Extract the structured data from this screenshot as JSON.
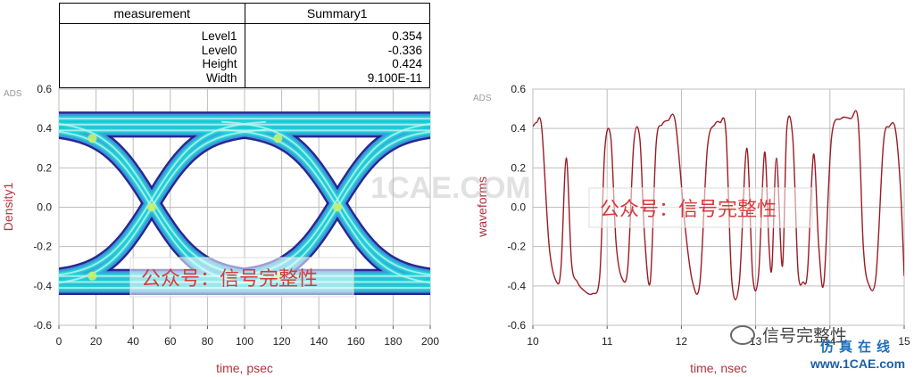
{
  "summary_table": {
    "headers": [
      "measurement",
      "Summary1"
    ],
    "rows": [
      {
        "name": "Level1",
        "value": "0.354"
      },
      {
        "name": "Level0",
        "value": "-0.336"
      },
      {
        "name": "Height",
        "value": "0.424"
      },
      {
        "name": "Width",
        "value": "9.100E-11"
      }
    ]
  },
  "watermarks": {
    "wechat_label": "公众号：信号完整性",
    "ghost_text": "1CAE.COM",
    "wechat_footer": "信号完整性",
    "site_cn": "仿真在线",
    "site_url": "www.1CAE.com"
  },
  "chart_data": [
    {
      "type": "eye-diagram",
      "corner_label": "ADS",
      "title": "",
      "xlabel": "time, psec",
      "ylabel": "Density1",
      "xlim": [
        0,
        200
      ],
      "ylim": [
        -0.6,
        0.6
      ],
      "xticks": [
        0,
        20,
        40,
        60,
        80,
        100,
        120,
        140,
        160,
        180,
        200
      ],
      "yticks": [
        -0.6,
        -0.4,
        -0.2,
        0.0,
        0.2,
        0.4,
        0.6
      ],
      "ytick_labels": [
        "-0.6",
        "-0.4",
        "-0.2",
        "0.0",
        "0.2",
        "0.4",
        "0.6"
      ],
      "level_high": 0.42,
      "level_low": -0.38,
      "crossings_x": [
        50,
        150
      ],
      "crossing_y": 0.0,
      "colors": {
        "core": "#1fd3d3",
        "mid": "#3f9fe0",
        "edge": "#1a1f8c",
        "hot": "#c6ef6e",
        "axis": "#b2333d",
        "grid": "#b8b8b8"
      }
    },
    {
      "type": "line",
      "corner_label": "ADS",
      "title": "",
      "xlabel": "time, nsec",
      "ylabel": "waveforms",
      "xlim": [
        10,
        15
      ],
      "ylim": [
        -0.6,
        0.6
      ],
      "xticks": [
        10,
        11,
        12,
        13,
        14,
        15
      ],
      "yticks": [
        -0.6,
        -0.4,
        -0.2,
        0.0,
        0.2,
        0.4,
        0.6
      ],
      "ytick_labels": [
        "-0.6",
        "-0.4",
        "-0.2",
        "0.0",
        "0.2",
        "0.4",
        "0.6"
      ],
      "series": [
        {
          "name": "waveforms",
          "color": "#9b1b25",
          "x": [
            10.0,
            10.05,
            10.12,
            10.22,
            10.32,
            10.38,
            10.45,
            10.52,
            10.6,
            10.68,
            10.8,
            10.9,
            10.97,
            11.05,
            11.12,
            11.2,
            11.28,
            11.36,
            11.44,
            11.5,
            11.58,
            11.66,
            11.74,
            11.82,
            11.92,
            12.05,
            12.15,
            12.25,
            12.35,
            12.45,
            12.52,
            12.6,
            12.68,
            12.78,
            12.88,
            12.96,
            13.04,
            13.12,
            13.18,
            13.22,
            13.28,
            13.36,
            13.42,
            13.5,
            13.57,
            13.64,
            13.7,
            13.78,
            13.85,
            13.92,
            14.02,
            14.15,
            14.28,
            14.38,
            14.45,
            14.52,
            14.62,
            14.72,
            14.8,
            14.88,
            14.95,
            15.0
          ],
          "y": [
            0.41,
            0.43,
            0.4,
            -0.2,
            -0.38,
            -0.3,
            0.25,
            -0.28,
            -0.38,
            -0.42,
            -0.44,
            -0.35,
            0.3,
            0.35,
            -0.18,
            -0.36,
            -0.3,
            0.33,
            0.35,
            -0.12,
            -0.38,
            0.32,
            0.42,
            0.44,
            0.43,
            -0.1,
            -0.38,
            -0.38,
            0.3,
            0.42,
            0.43,
            0.38,
            -0.38,
            -0.38,
            0.3,
            -0.35,
            -0.34,
            0.28,
            -0.2,
            -0.3,
            0.25,
            -0.3,
            0.4,
            0.35,
            -0.32,
            -0.38,
            -0.32,
            0.27,
            -0.2,
            -0.38,
            0.35,
            0.45,
            0.45,
            0.44,
            -0.2,
            -0.39,
            -0.35,
            0.32,
            0.41,
            0.4,
            0.1,
            -0.35
          ]
        }
      ]
    }
  ]
}
